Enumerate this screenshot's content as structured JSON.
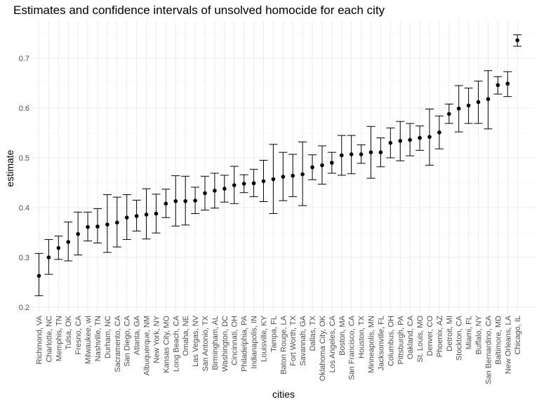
{
  "chart_data": {
    "type": "scatter",
    "title": "Estimates and confidence intervals of unsolved homocide for each city",
    "xlabel": "cities",
    "ylabel": "estimate",
    "ylim": [
      0.2,
      0.75
    ],
    "yticks": [
      "0.2",
      "0.3",
      "0.4",
      "0.5",
      "0.6",
      "0.7"
    ],
    "grid": true,
    "error_bars": true,
    "points": [
      {
        "city": "Richmond, VA",
        "estimate": 0.263,
        "lower": 0.223,
        "upper": 0.308
      },
      {
        "city": "Charlotte, NC",
        "estimate": 0.3,
        "lower": 0.266,
        "upper": 0.336
      },
      {
        "city": "Memphis, TN",
        "estimate": 0.319,
        "lower": 0.296,
        "upper": 0.343
      },
      {
        "city": "Tulsa, OK",
        "estimate": 0.331,
        "lower": 0.293,
        "upper": 0.371
      },
      {
        "city": "Fresno, CA",
        "estimate": 0.347,
        "lower": 0.305,
        "upper": 0.391
      },
      {
        "city": "Milwaukee, wI",
        "estimate": 0.361,
        "lower": 0.333,
        "upper": 0.391
      },
      {
        "city": "Nashville, TN",
        "estimate": 0.362,
        "lower": 0.329,
        "upper": 0.398
      },
      {
        "city": "Durham, NC",
        "estimate": 0.366,
        "lower": 0.31,
        "upper": 0.426
      },
      {
        "city": "Sacramento, CA",
        "estimate": 0.37,
        "lower": 0.321,
        "upper": 0.421
      },
      {
        "city": "San Diego, CA",
        "estimate": 0.38,
        "lower": 0.336,
        "upper": 0.426
      },
      {
        "city": "Atlanta, GA",
        "estimate": 0.383,
        "lower": 0.353,
        "upper": 0.415
      },
      {
        "city": "Albuquerque, NM",
        "estimate": 0.386,
        "lower": 0.337,
        "upper": 0.438
      },
      {
        "city": "New York, NY",
        "estimate": 0.388,
        "lower": 0.349,
        "upper": 0.427
      },
      {
        "city": "Kansas City, MO",
        "estimate": 0.408,
        "lower": 0.38,
        "upper": 0.437
      },
      {
        "city": "Long Beach, CA",
        "estimate": 0.413,
        "lower": 0.363,
        "upper": 0.464
      },
      {
        "city": "Omaha, NE",
        "estimate": 0.413,
        "lower": 0.365,
        "upper": 0.463
      },
      {
        "city": "Las Vegas, NV",
        "estimate": 0.414,
        "lower": 0.388,
        "upper": 0.441
      },
      {
        "city": "San Antonio, TX",
        "estimate": 0.429,
        "lower": 0.395,
        "upper": 0.463
      },
      {
        "city": "Birmingham, AL",
        "estimate": 0.434,
        "lower": 0.399,
        "upper": 0.469
      },
      {
        "city": "Washington, DC",
        "estimate": 0.438,
        "lower": 0.411,
        "upper": 0.465
      },
      {
        "city": "Cincinnati, OH",
        "estimate": 0.445,
        "lower": 0.408,
        "upper": 0.483
      },
      {
        "city": "Philadelphia, PA",
        "estimate": 0.448,
        "lower": 0.43,
        "upper": 0.466
      },
      {
        "city": "Indianapolis, IN",
        "estimate": 0.449,
        "lower": 0.422,
        "upper": 0.477
      },
      {
        "city": "Louisville, KY",
        "estimate": 0.453,
        "lower": 0.412,
        "upper": 0.495
      },
      {
        "city": "Tampa, FL",
        "estimate": 0.457,
        "lower": 0.388,
        "upper": 0.527
      },
      {
        "city": "Baton Rouge, LA",
        "estimate": 0.462,
        "lower": 0.414,
        "upper": 0.511
      },
      {
        "city": "Fort Worth, TX",
        "estimate": 0.464,
        "lower": 0.422,
        "upper": 0.507
      },
      {
        "city": "Savannah, GA",
        "estimate": 0.467,
        "lower": 0.404,
        "upper": 0.532
      },
      {
        "city": "Dallas, TX",
        "estimate": 0.481,
        "lower": 0.456,
        "upper": 0.506
      },
      {
        "city": "Oklahoma City, OK",
        "estimate": 0.485,
        "lower": 0.447,
        "upper": 0.524
      },
      {
        "city": "Los Angeles, CA",
        "estimate": 0.49,
        "lower": 0.469,
        "upper": 0.511
      },
      {
        "city": "Boston, MA",
        "estimate": 0.505,
        "lower": 0.465,
        "upper": 0.545
      },
      {
        "city": "San Francisco, CA",
        "estimate": 0.507,
        "lower": 0.468,
        "upper": 0.545
      },
      {
        "city": "Houston, TX",
        "estimate": 0.507,
        "lower": 0.489,
        "upper": 0.526
      },
      {
        "city": "Minneapolis, MN",
        "estimate": 0.511,
        "lower": 0.459,
        "upper": 0.563
      },
      {
        "city": "Jacksonville, FL",
        "estimate": 0.511,
        "lower": 0.482,
        "upper": 0.54
      },
      {
        "city": "Columbus, OH",
        "estimate": 0.53,
        "lower": 0.5,
        "upper": 0.56
      },
      {
        "city": "Pittsburgh, PA",
        "estimate": 0.534,
        "lower": 0.494,
        "upper": 0.573
      },
      {
        "city": "Oakland, CA",
        "estimate": 0.536,
        "lower": 0.504,
        "upper": 0.569
      },
      {
        "city": "St. Louis, MO",
        "estimate": 0.54,
        "lower": 0.515,
        "upper": 0.564
      },
      {
        "city": "Denver, CO",
        "estimate": 0.542,
        "lower": 0.485,
        "upper": 0.598
      },
      {
        "city": "Phoenix, AZ",
        "estimate": 0.551,
        "lower": 0.518,
        "upper": 0.584
      },
      {
        "city": "Detroit, MI",
        "estimate": 0.588,
        "lower": 0.569,
        "upper": 0.608
      },
      {
        "city": "Stockton, CA",
        "estimate": 0.599,
        "lower": 0.552,
        "upper": 0.645
      },
      {
        "city": "Miami, FL",
        "estimate": 0.605,
        "lower": 0.569,
        "upper": 0.64
      },
      {
        "city": "Buffalo, NY",
        "estimate": 0.612,
        "lower": 0.569,
        "upper": 0.654
      },
      {
        "city": "San Bernardino, CA",
        "estimate": 0.618,
        "lower": 0.558,
        "upper": 0.675
      },
      {
        "city": "Baltimore, MD",
        "estimate": 0.646,
        "lower": 0.628,
        "upper": 0.663
      },
      {
        "city": "New Orleans, LA",
        "estimate": 0.649,
        "lower": 0.623,
        "upper": 0.673
      },
      {
        "city": "Chicago, IL",
        "estimate": 0.736,
        "lower": 0.724,
        "upper": 0.747
      }
    ]
  }
}
